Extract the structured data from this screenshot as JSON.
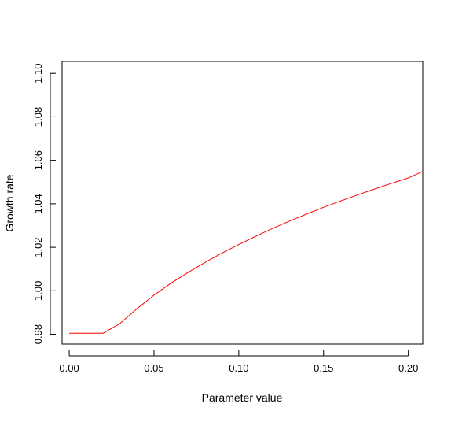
{
  "chart_data": {
    "type": "line",
    "title": "",
    "xlabel": "Parameter value",
    "ylabel": "Growth rate",
    "xlim": [
      -0.0042,
      0.2085
    ],
    "ylim": [
      0.9755,
      1.1055
    ],
    "x_ticks": [
      0.0,
      0.05,
      0.1,
      0.15,
      0.2
    ],
    "x_tick_labels": [
      "0.00",
      "0.05",
      "0.10",
      "0.15",
      "0.20"
    ],
    "y_ticks": [
      0.98,
      1.0,
      1.02,
      1.04,
      1.06,
      1.08,
      1.1
    ],
    "y_tick_labels": [
      "0.98",
      "1.00",
      "1.02",
      "1.04",
      "1.06",
      "1.08",
      "1.10"
    ],
    "grid": false,
    "series": [
      {
        "color": "#ff0000",
        "x": [
          0.0,
          0.01,
          0.02,
          0.03,
          0.04,
          0.05,
          0.06,
          0.07,
          0.08,
          0.09,
          0.1,
          0.11,
          0.12,
          0.13,
          0.14,
          0.15,
          0.16,
          0.17,
          0.18,
          0.19,
          0.2,
          0.2085
        ],
        "y": [
          0.9805,
          0.9805,
          0.9805,
          0.985,
          0.9918,
          0.998,
          1.0035,
          1.0084,
          1.013,
          1.0173,
          1.0213,
          1.0251,
          1.0287,
          1.0321,
          1.0353,
          1.0384,
          1.0413,
          1.0441,
          1.0468,
          1.0494,
          1.0519,
          1.0549
        ]
      }
    ]
  }
}
